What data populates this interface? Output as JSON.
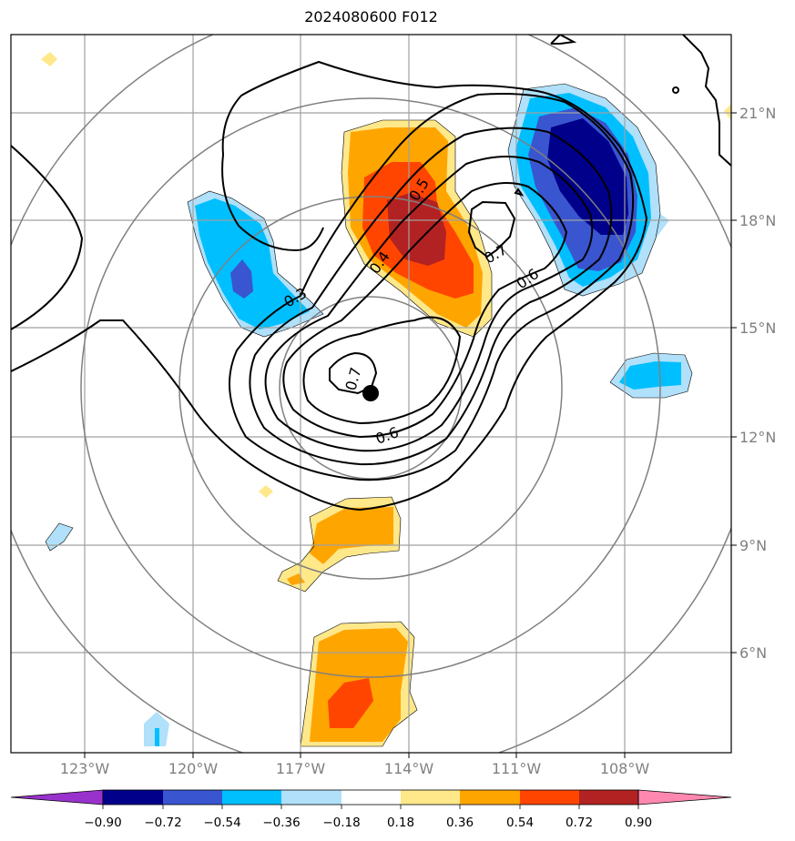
{
  "title": "2024080600 F012",
  "map": {
    "lon_labels": [
      "123°W",
      "120°W",
      "117°W",
      "114°W",
      "111°W",
      "108°W"
    ],
    "lat_labels": [
      "21°N",
      "18°N",
      "15°N",
      "12°N",
      "9°N",
      "6°N"
    ],
    "grid_color": "#a0a0a0",
    "range_ring_color": "#808080",
    "center_marker": "black-dot"
  },
  "contour_labels": [
    "0.3",
    "0.4",
    "0.5",
    "0.6",
    "0.7",
    "0.6",
    "0.7"
  ],
  "colorbar": {
    "tick_labels": [
      "−0.90",
      "−0.72",
      "−0.54",
      "−0.36",
      "−0.18",
      "0.18",
      "0.36",
      "0.54",
      "0.72",
      "0.90"
    ],
    "colors": [
      "#9932cc",
      "#00008b",
      "#3a55d0",
      "#00bfff",
      "#b0e0fa",
      "#ffffff",
      "#ffe88a",
      "#ffa500",
      "#ff4500",
      "#b22222",
      "#ff88b0"
    ],
    "extend": "both"
  }
}
